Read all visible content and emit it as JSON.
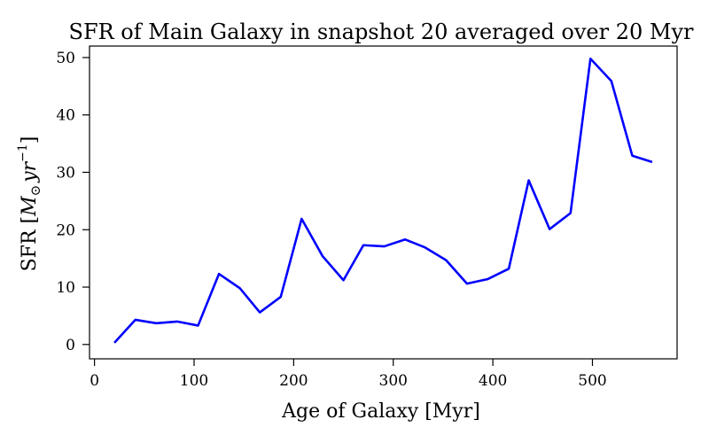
{
  "chart_data": {
    "type": "line",
    "title": "SFR of Main Galaxy in snapshot 20 averaged over 20 Myr",
    "xlabel": "Age of Galaxy [Myr]",
    "ylabel_prefix": "SFR [",
    "ylabel_unit_main": "M",
    "ylabel_unit_sub": "⊙",
    "ylabel_unit_yr": "yr",
    "ylabel_unit_exp": "−1",
    "ylabel_suffix": "]",
    "xlim": [
      -5,
      585
    ],
    "ylim": [
      -2.5,
      52
    ],
    "xticks": [
      0,
      100,
      200,
      300,
      400,
      500
    ],
    "yticks": [
      0,
      10,
      20,
      30,
      40,
      50
    ],
    "grid": false,
    "color": "#0000ff",
    "series": [
      {
        "x": [
          20,
          41,
          62,
          83,
          104,
          125,
          146,
          166,
          187,
          208,
          229,
          250,
          270,
          291,
          312,
          332,
          353,
          374,
          395,
          416,
          436,
          457,
          478,
          498,
          519,
          540,
          560
        ],
        "y": [
          0.3,
          4.3,
          3.7,
          4.0,
          3.3,
          12.3,
          9.8,
          5.6,
          8.3,
          21.9,
          15.4,
          11.2,
          17.3,
          17.1,
          18.3,
          16.9,
          14.7,
          10.6,
          11.4,
          13.2,
          28.6,
          20.1,
          22.9,
          49.8,
          45.9,
          32.9,
          31.8
        ]
      }
    ]
  }
}
